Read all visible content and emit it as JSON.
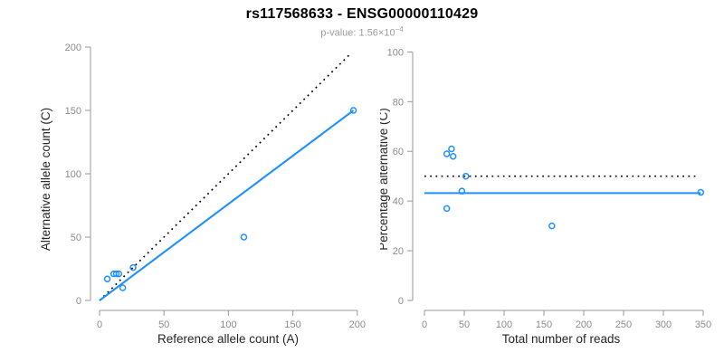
{
  "header": {
    "title": "rs117568633 - ENSG00000110429",
    "pvalue_label": "p-value: ",
    "pvalue_mantissa": "1.56×10",
    "pvalue_exponent": "−4"
  },
  "colors": {
    "accent_blue": "#1E90FF",
    "line_black": "#000000",
    "axis_gray": "#9a9a9a",
    "tick_label_gray": "#8c8c8c",
    "axis_title_color": "#262626",
    "subtitle_gray": "#9b9b9b"
  },
  "chart_data": [
    {
      "type": "scatter",
      "panel": "left",
      "xlabel": "Reference allele count (A)",
      "ylabel": "Alternative allele count (C)",
      "xlim": [
        0,
        200
      ],
      "ylim": [
        0,
        200
      ],
      "xticks": [
        0,
        50,
        100,
        150,
        200
      ],
      "yticks": [
        0,
        50,
        100,
        150,
        200
      ],
      "grid": false,
      "points": [
        [
          6,
          17
        ],
        [
          11,
          21
        ],
        [
          13,
          21
        ],
        [
          15,
          21
        ],
        [
          26,
          26
        ],
        [
          18,
          10
        ],
        [
          112,
          50
        ],
        [
          197,
          150
        ]
      ],
      "lines": [
        {
          "name": "identity-line",
          "style": "dotted",
          "color": "#000000",
          "from": [
            0,
            0
          ],
          "to": [
            195,
            195
          ]
        },
        {
          "name": "fit-line",
          "style": "solid",
          "color": "#1E90FF",
          "from": [
            0,
            0
          ],
          "to": [
            197,
            150
          ]
        }
      ]
    },
    {
      "type": "scatter",
      "panel": "right",
      "xlabel": "Total number of reads",
      "ylabel": "Percentage alternative (C)",
      "xlim": [
        0,
        350
      ],
      "ylim": [
        0,
        100
      ],
      "xticks": [
        0,
        50,
        100,
        150,
        200,
        250,
        300,
        350
      ],
      "yticks": [
        0,
        20,
        40,
        60,
        80,
        100
      ],
      "grid": false,
      "points": [
        [
          28,
          59
        ],
        [
          34,
          61
        ],
        [
          36,
          58
        ],
        [
          52,
          50
        ],
        [
          47,
          44
        ],
        [
          28,
          37
        ],
        [
          160,
          30
        ],
        [
          347,
          43.5
        ]
      ],
      "lines": [
        {
          "name": "null-50pct-line",
          "style": "dotted",
          "color": "#000000",
          "from": [
            0,
            50
          ],
          "to": [
            345,
            50
          ]
        },
        {
          "name": "mean-fraction-line",
          "style": "solid",
          "color": "#1E90FF",
          "from": [
            0,
            43.2
          ],
          "to": [
            347,
            43.2
          ]
        }
      ]
    }
  ]
}
